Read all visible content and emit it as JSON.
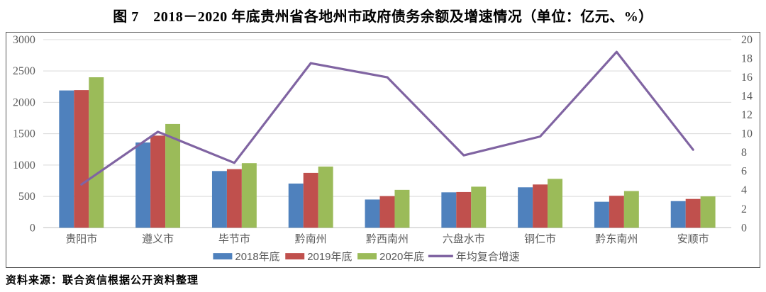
{
  "title": "图 7　2018－2020 年底贵州省各地州市政府债务余额及增速情况（单位：亿元、%）",
  "source_note": "资料来源：联合资信根据公开资料整理",
  "colors": {
    "bar_2018": "#4F81BD",
    "bar_2019": "#C0504D",
    "bar_2020": "#9BBB59",
    "line_cagr": "#8064A2",
    "gridline": "#d9d9d9",
    "axis_line": "#bfbfbf",
    "axis_text": "#595959",
    "box_border": "#595959"
  },
  "chart_data": {
    "type": "bar",
    "subtype": "grouped-bars-with-line-on-secondary-axis",
    "title": "图 7　2018－2020 年底贵州省各地州市政府债务余额及增速情况（单位：亿元、%）",
    "categories": [
      "贵阳市",
      "遵义市",
      "毕节市",
      "黔南州",
      "黔西南州",
      "六盘水市",
      "铜仁市",
      "黔东南州",
      "安顺市"
    ],
    "series": [
      {
        "name": "2018年底",
        "type": "bar",
        "axis": "left",
        "color": "#4F81BD",
        "values": [
          2190,
          1360,
          905,
          705,
          450,
          565,
          645,
          415,
          425
        ]
      },
      {
        "name": "2019年底",
        "type": "bar",
        "axis": "left",
        "color": "#C0504D",
        "values": [
          2195,
          1470,
          935,
          875,
          505,
          570,
          690,
          510,
          460
        ]
      },
      {
        "name": "2020年底",
        "type": "bar",
        "axis": "left",
        "color": "#9BBB59",
        "values": [
          2400,
          1655,
          1030,
          975,
          605,
          655,
          780,
          585,
          500
        ]
      },
      {
        "name": "年均复合增速",
        "type": "line",
        "axis": "right",
        "color": "#8064A2",
        "values": [
          4.6,
          10.2,
          6.9,
          17.5,
          16.0,
          7.7,
          9.7,
          18.7,
          8.3
        ]
      }
    ],
    "left_axis": {
      "min": 0,
      "max": 3000,
      "step": 500,
      "ticks": [
        0,
        500,
        1000,
        1500,
        2000,
        2500,
        3000
      ],
      "unit": "亿元"
    },
    "right_axis": {
      "min": 0,
      "max": 20,
      "step": 2,
      "ticks": [
        0,
        2,
        4,
        6,
        8,
        10,
        12,
        14,
        16,
        18,
        20
      ],
      "unit": "%"
    },
    "grid": true,
    "legend_position": "bottom",
    "xlabel": "",
    "ylabel": ""
  }
}
